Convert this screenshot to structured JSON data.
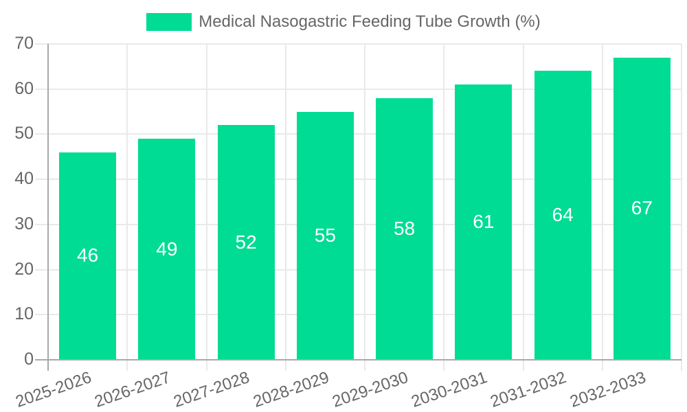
{
  "chart_data": {
    "type": "bar",
    "legend_label": "Medical Nasogastric Feeding Tube Growth (%)",
    "legend_position": "top-center",
    "categories": [
      "2025-2026",
      "2026-2027",
      "2027-2028",
      "2028-2029",
      "2029-2030",
      "2030-2031",
      "2031-2032",
      "2032-2033"
    ],
    "values": [
      46,
      49,
      52,
      55,
      58,
      61,
      64,
      67
    ],
    "y_ticks": [
      0,
      10,
      20,
      30,
      40,
      50,
      60,
      70
    ],
    "ylim": [
      0,
      70
    ],
    "xlabel": "",
    "ylabel": "",
    "grid": true,
    "bar_color": "#00dc93",
    "value_label_color": "#ffffff",
    "axis_text_color": "#666666",
    "grid_color": "#e9e9e9",
    "axis_line_color": "#a8a8a8",
    "background_color": "#ffffff"
  }
}
